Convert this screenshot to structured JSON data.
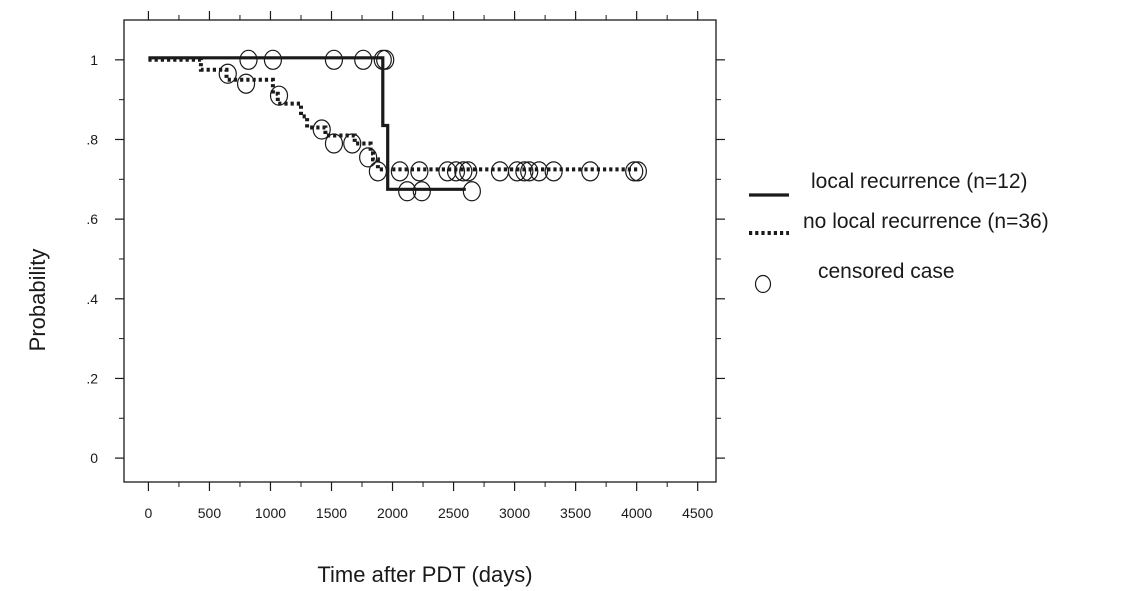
{
  "chart_data": {
    "type": "line",
    "subtype": "kaplan-meier step",
    "title": "",
    "xlabel": "Time after PDT (days)",
    "ylabel": "Probability",
    "xlim": [
      -200,
      4650
    ],
    "ylim": [
      -0.06,
      1.1
    ],
    "x_ticks": [
      0,
      500,
      1000,
      1500,
      2000,
      2500,
      3000,
      3500,
      4000,
      4500
    ],
    "x_tick_labels": [
      "0",
      "500",
      "1000",
      "1500",
      "2000",
      "2500",
      "3000",
      "3500",
      "4000",
      "4500"
    ],
    "y_ticks": [
      0,
      0.2,
      0.4,
      0.6,
      0.8,
      1.0
    ],
    "y_tick_labels": [
      "0",
      ".2",
      ".4",
      ".6",
      ".8",
      "1"
    ],
    "x_minor_ticks": [
      250,
      750,
      1250,
      1750,
      2250,
      2750,
      3250,
      3750,
      4250
    ],
    "y_minor_ticks": [
      0.1,
      0.3,
      0.5,
      0.7,
      0.9
    ],
    "grid": false,
    "legend_position": "right",
    "series": [
      {
        "name": "local recurrence (n=12)",
        "line_style": "solid",
        "color": "#1a1a1a",
        "steps": [
          [
            0,
            1.005
          ],
          [
            1920,
            1.005
          ],
          [
            1920,
            0.835
          ],
          [
            1960,
            0.835
          ],
          [
            1960,
            0.675
          ],
          [
            2600,
            0.675
          ]
        ],
        "censored": [
          [
            820,
            1.0
          ],
          [
            1020,
            1.0
          ],
          [
            1520,
            1.0
          ],
          [
            1760,
            1.0
          ],
          [
            1920,
            1.0
          ],
          [
            1940,
            1.0
          ],
          [
            2120,
            0.67
          ],
          [
            2240,
            0.67
          ],
          [
            2650,
            0.67
          ]
        ]
      },
      {
        "name": "no local recurrence (n=36)",
        "line_style": "dotted",
        "color": "#1a1a1a",
        "steps": [
          [
            0,
            1.0
          ],
          [
            430,
            1.0
          ],
          [
            430,
            0.975
          ],
          [
            640,
            0.975
          ],
          [
            640,
            0.95
          ],
          [
            1020,
            0.95
          ],
          [
            1020,
            0.915
          ],
          [
            1060,
            0.915
          ],
          [
            1060,
            0.89
          ],
          [
            1250,
            0.89
          ],
          [
            1250,
            0.858
          ],
          [
            1300,
            0.858
          ],
          [
            1300,
            0.83
          ],
          [
            1450,
            0.83
          ],
          [
            1450,
            0.81
          ],
          [
            1690,
            0.81
          ],
          [
            1690,
            0.79
          ],
          [
            1820,
            0.79
          ],
          [
            1820,
            0.765
          ],
          [
            1840,
            0.765
          ],
          [
            1840,
            0.75
          ],
          [
            1880,
            0.75
          ],
          [
            1880,
            0.725
          ],
          [
            4020,
            0.725
          ]
        ],
        "censored": [
          [
            650,
            0.965
          ],
          [
            800,
            0.94
          ],
          [
            1070,
            0.91
          ],
          [
            1420,
            0.825
          ],
          [
            1520,
            0.79
          ],
          [
            1670,
            0.79
          ],
          [
            1800,
            0.755
          ],
          [
            1880,
            0.72
          ],
          [
            2060,
            0.72
          ],
          [
            2220,
            0.72
          ],
          [
            2450,
            0.72
          ],
          [
            2520,
            0.72
          ],
          [
            2580,
            0.72
          ],
          [
            2620,
            0.72
          ],
          [
            2880,
            0.72
          ],
          [
            3020,
            0.72
          ],
          [
            3080,
            0.72
          ],
          [
            3120,
            0.72
          ],
          [
            3200,
            0.72
          ],
          [
            3320,
            0.72
          ],
          [
            3620,
            0.72
          ],
          [
            3980,
            0.72
          ],
          [
            4010,
            0.72
          ]
        ]
      }
    ],
    "legend": [
      {
        "key": "solid",
        "label": "local recurrence (n=12)"
      },
      {
        "key": "dotted",
        "label": "no local recurrence (n=36)"
      },
      {
        "key": "circle",
        "label": "censored case"
      }
    ]
  }
}
